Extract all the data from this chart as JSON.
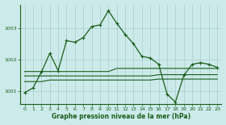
{
  "title": "Graphe pression niveau de la mer (hPa)",
  "background_color": "#cceaea",
  "grid_color": "#aacccc",
  "line_color": "#1a5e1a",
  "xlim": [
    -0.5,
    23.5
  ],
  "ylim": [
    1000.6,
    1003.75
  ],
  "yticks": [
    1001,
    1002,
    1003
  ],
  "xticks": [
    0,
    1,
    2,
    3,
    4,
    5,
    6,
    7,
    8,
    9,
    10,
    11,
    12,
    13,
    14,
    15,
    16,
    17,
    18,
    19,
    20,
    21,
    22,
    23
  ],
  "main_x": [
    0,
    1,
    2,
    3,
    4,
    5,
    6,
    7,
    8,
    9,
    10,
    11,
    12,
    13,
    14,
    15,
    16,
    17,
    18,
    19,
    20,
    21,
    22,
    23
  ],
  "main_y": [
    1000.95,
    1001.1,
    1001.6,
    1002.2,
    1001.65,
    1002.6,
    1002.55,
    1002.7,
    1003.05,
    1003.1,
    1003.55,
    1003.15,
    1002.8,
    1002.5,
    1002.1,
    1002.05,
    1001.85,
    1000.9,
    1000.65,
    1001.5,
    1001.85,
    1001.9,
    1001.85,
    1001.75
  ],
  "flat_lines": [
    [
      1001.62,
      1001.62,
      1001.62,
      1001.62,
      1001.62,
      1001.62,
      1001.62,
      1001.62,
      1001.62,
      1001.62,
      1001.62,
      1001.72,
      1001.72,
      1001.72,
      1001.72,
      1001.72,
      1001.72,
      1001.72,
      1001.72,
      1001.72,
      1001.72,
      1001.72,
      1001.72,
      1001.72
    ],
    [
      1001.48,
      1001.48,
      1001.48,
      1001.48,
      1001.48,
      1001.48,
      1001.48,
      1001.48,
      1001.48,
      1001.48,
      1001.48,
      1001.48,
      1001.48,
      1001.48,
      1001.48,
      1001.48,
      1001.52,
      1001.52,
      1001.52,
      1001.52,
      1001.52,
      1001.52,
      1001.52,
      1001.52
    ],
    [
      1001.3,
      1001.3,
      1001.3,
      1001.35,
      1001.35,
      1001.35,
      1001.35,
      1001.35,
      1001.35,
      1001.35,
      1001.35,
      1001.35,
      1001.35,
      1001.35,
      1001.35,
      1001.35,
      1001.38,
      1001.38,
      1001.38,
      1001.38,
      1001.38,
      1001.38,
      1001.38,
      1001.38
    ]
  ]
}
